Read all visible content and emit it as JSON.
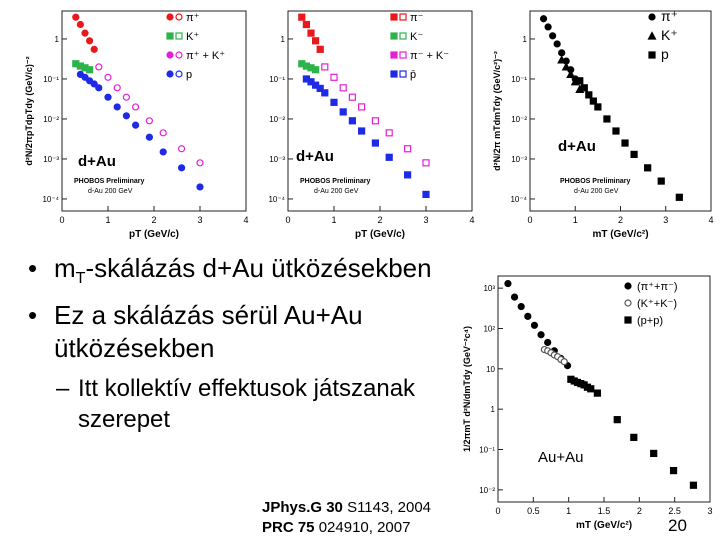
{
  "plots": {
    "p1": {
      "system": "d+Au",
      "prelim": "PHOBOS Preliminary",
      "energy": "d-Au 200 GeV",
      "xlabel": "pT (GeV/c)",
      "ylabel": "d²N/2πpTdpTdy (GeV/c)⁻²",
      "x_ticks": [
        "0",
        "1",
        "2",
        "3",
        "4"
      ],
      "y_ticks": [
        "1",
        "10⁻¹",
        "10⁻²",
        "10⁻³",
        "10⁻⁴"
      ],
      "legend": [
        "π⁺",
        "K⁺",
        "π⁺ + K⁺",
        "p"
      ]
    },
    "p2": {
      "system": "d+Au",
      "prelim": "PHOBOS Preliminary",
      "energy": "d-Au 200 GeV",
      "xlabel": "pT (GeV/c)",
      "x_ticks": [
        "0",
        "1",
        "2",
        "3",
        "4"
      ],
      "y_ticks": [
        "1",
        "10⁻¹",
        "10⁻²",
        "10⁻³",
        "10⁻⁴"
      ],
      "legend": [
        "π⁻",
        "K⁻",
        "π⁻ + K⁻",
        "p̄"
      ]
    },
    "p3": {
      "system": "d+Au",
      "prelim": "PHOBOS Preliminary",
      "energy": "d-Au 200 GeV",
      "xlabel": "mT (GeV/c²)",
      "ylabel": "d²N/2π mTdmTdy (GeV/c²)⁻²",
      "x_ticks": [
        "0",
        "1",
        "2",
        "3",
        "4"
      ],
      "y_ticks": [
        "1",
        "10⁻¹",
        "10⁻²",
        "10⁻³",
        "10⁻⁴"
      ],
      "legend": [
        "π⁺",
        "K⁺",
        "p"
      ]
    },
    "p4": {
      "system": "Au+Au",
      "xlabel": "mT (GeV/c²)",
      "ylabel": "1/2πmT d²N/dmTdy (GeV⁻²c⁴)",
      "x_ticks": [
        "0",
        "0.5",
        "1",
        "1.5",
        "2",
        "2.5",
        "3"
      ],
      "y_ticks": [
        "10³",
        "10²",
        "10",
        "1",
        "10⁻¹",
        "10⁻²"
      ],
      "legend": [
        "(π⁺+π⁻)",
        "(K⁺+K⁻)",
        "(p+p)"
      ]
    }
  },
  "bullets": [
    {
      "main": "m",
      "sub": "T",
      "rest": "-skálázás d+Au ütközésekben"
    },
    {
      "text": "Ez a skálázás sérül Au+Au ütközésekben"
    }
  ],
  "subbullet": "Itt kollektív effektusok játszanak szerepet",
  "refs": {
    "r1": {
      "journal": "JPhys.G",
      "vol": "30",
      "pages": "S1143, 2004"
    },
    "r2": {
      "journal": "PRC",
      "vol": "75",
      "pages": "024910, 2007"
    }
  },
  "page_number": "20",
  "colors": {
    "pion": "#e8191c",
    "kaon": "#2db34a",
    "sum": "#e61fd8",
    "proton": "#1f2ae6"
  },
  "chart_data": [
    {
      "type": "scatter",
      "title": "",
      "xlabel": "pT (GeV/c)",
      "ylabel": "d²N/2πpTdpTdy (GeV/c)⁻²",
      "xlim": [
        0,
        4
      ],
      "ylim": [
        5e-05,
        5
      ],
      "log_y": true,
      "series": [
        {
          "name": "π⁺",
          "x": [
            0.3,
            0.4,
            0.5,
            0.6,
            0.7
          ],
          "y": [
            3.5,
            2.3,
            1.4,
            0.9,
            0.55
          ]
        },
        {
          "name": "K⁺",
          "x": [
            0.3,
            0.4,
            0.5,
            0.6
          ],
          "y": [
            0.24,
            0.21,
            0.19,
            0.17
          ]
        },
        {
          "name": "π⁺ + K⁺",
          "x": [
            0.8,
            1.0,
            1.2,
            1.4,
            1.6,
            1.9,
            2.2,
            2.6,
            3.0
          ],
          "y": [
            0.2,
            0.11,
            0.06,
            0.035,
            0.02,
            0.009,
            0.0045,
            0.0018,
            0.0008
          ]
        },
        {
          "name": "p",
          "x": [
            0.4,
            0.5,
            0.6,
            0.7,
            0.8,
            1.0,
            1.2,
            1.4,
            1.6,
            1.9,
            2.2,
            2.6,
            3.0
          ],
          "y": [
            0.13,
            0.11,
            0.09,
            0.075,
            0.06,
            0.035,
            0.02,
            0.012,
            0.007,
            0.0035,
            0.0015,
            0.0006,
            0.0002
          ]
        }
      ]
    },
    {
      "type": "scatter",
      "title": "",
      "xlabel": "pT (GeV/c)",
      "ylabel": "",
      "xlim": [
        0,
        4
      ],
      "ylim": [
        5e-05,
        5
      ],
      "log_y": true,
      "series": [
        {
          "name": "π⁻",
          "x": [
            0.3,
            0.4,
            0.5,
            0.6,
            0.7
          ],
          "y": [
            3.5,
            2.3,
            1.4,
            0.9,
            0.55
          ]
        },
        {
          "name": "K⁻",
          "x": [
            0.3,
            0.4,
            0.5,
            0.6
          ],
          "y": [
            0.24,
            0.21,
            0.19,
            0.17
          ]
        },
        {
          "name": "π⁻ + K⁻",
          "x": [
            0.8,
            1.0,
            1.2,
            1.4,
            1.6,
            1.9,
            2.2,
            2.6,
            3.0
          ],
          "y": [
            0.2,
            0.11,
            0.06,
            0.035,
            0.02,
            0.009,
            0.0045,
            0.0018,
            0.0008
          ]
        },
        {
          "name": "p̄",
          "x": [
            0.4,
            0.5,
            0.6,
            0.7,
            0.8,
            1.0,
            1.2,
            1.4,
            1.6,
            1.9,
            2.2,
            2.6,
            3.0
          ],
          "y": [
            0.1,
            0.085,
            0.07,
            0.058,
            0.045,
            0.026,
            0.015,
            0.009,
            0.005,
            0.0025,
            0.0011,
            0.0004,
            0.00013
          ]
        }
      ]
    },
    {
      "type": "scatter",
      "title": "",
      "xlabel": "mT (GeV/c²)",
      "ylabel": "d²N/2π mTdmTdy (GeV/c²)⁻²",
      "xlim": [
        0,
        4
      ],
      "ylim": [
        5e-05,
        5
      ],
      "log_y": true,
      "series": [
        {
          "name": "π⁺",
          "x": [
            0.3,
            0.4,
            0.5,
            0.6,
            0.7,
            0.8,
            0.9,
            1.0
          ],
          "y": [
            3.2,
            2.0,
            1.2,
            0.75,
            0.45,
            0.28,
            0.17,
            0.1
          ]
        },
        {
          "name": "K⁺",
          "x": [
            0.7,
            0.8,
            0.9,
            1.0,
            1.1
          ],
          "y": [
            0.3,
            0.2,
            0.13,
            0.085,
            0.055
          ]
        },
        {
          "name": "p",
          "x": [
            1.1,
            1.2,
            1.3,
            1.4,
            1.5,
            1.7,
            1.9,
            2.1,
            2.3,
            2.6,
            2.9,
            3.3
          ],
          "y": [
            0.09,
            0.06,
            0.04,
            0.028,
            0.02,
            0.01,
            0.005,
            0.0025,
            0.0013,
            0.0006,
            0.00028,
            0.00011
          ]
        }
      ]
    },
    {
      "type": "scatter",
      "title": "",
      "xlabel": "mT (GeV/c²)",
      "ylabel": "1/2πmT d²N/dmTdy (GeV⁻²c⁴)",
      "xlim": [
        0,
        3.2
      ],
      "ylim": [
        0.005,
        2000
      ],
      "log_y": true,
      "series": [
        {
          "name": "(π⁺+π⁻)",
          "x": [
            0.15,
            0.25,
            0.35,
            0.45,
            0.55,
            0.65,
            0.75,
            0.85,
            0.95,
            1.05
          ],
          "y": [
            1300,
            600,
            350,
            200,
            120,
            70,
            45,
            28,
            18,
            12
          ]
        },
        {
          "name": "(K⁺+K⁻)",
          "x": [
            0.7,
            0.75,
            0.8,
            0.85,
            0.9,
            0.95,
            1.0
          ],
          "y": [
            30,
            28,
            25,
            22,
            20,
            17,
            15
          ]
        },
        {
          "name": "(p+p)",
          "x": [
            1.1,
            1.15,
            1.2,
            1.25,
            1.3,
            1.35,
            1.4,
            1.5,
            1.8,
            2.05,
            2.35,
            2.65,
            2.95
          ],
          "y": [
            5.5,
            5.0,
            4.6,
            4.3,
            4.0,
            3.5,
            3.2,
            2.5,
            0.55,
            0.2,
            0.08,
            0.03,
            0.013
          ]
        }
      ]
    }
  ]
}
